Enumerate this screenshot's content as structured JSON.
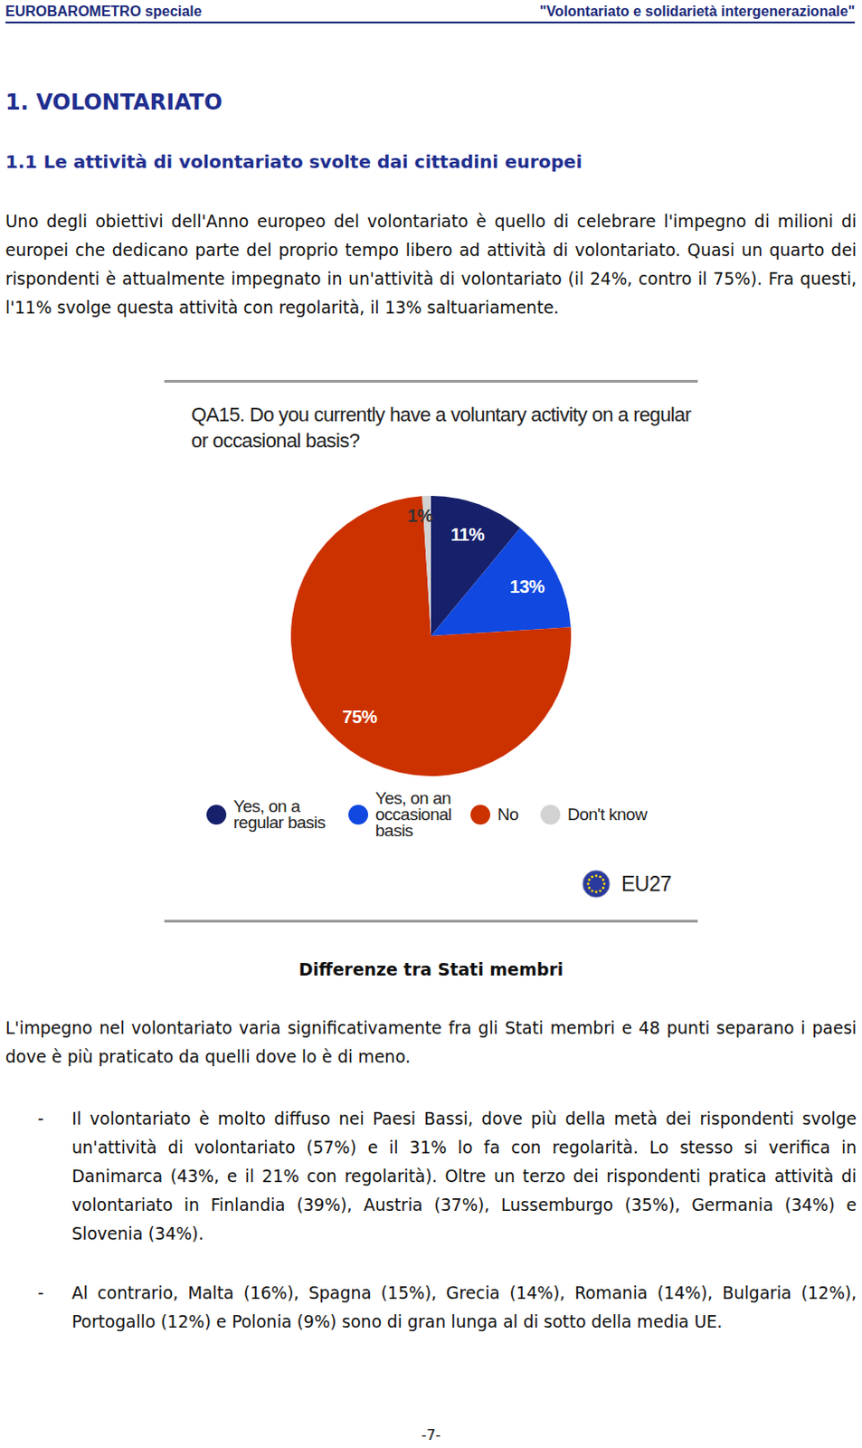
{
  "header": {
    "left": "EUROBAROMETRO speciale",
    "right": "\"Volontariato e solidarietà intergenerazionale\""
  },
  "section_title": "1. VOLONTARIATO",
  "subsection_title": "1.1 Le attività di volontariato svolte dai cittadini europei",
  "paragraph_1": "Uno degli obiettivi dell'Anno europeo del volontariato è quello di celebrare l'impegno di milioni di europei che dedicano parte del proprio tempo libero ad attività di volontariato. Quasi un quarto dei rispondenti è attualmente impegnato in un'attività di volontariato (il 24%, contro il 75%). Fra questi, l'11% svolge questa attività con regolarità, il 13% saltuariamente.",
  "chart_data": {
    "type": "pie",
    "title": "QA15. Do you currently have a voluntary activity on a regular or occasional basis?",
    "categories": [
      "Yes, on a regular basis",
      "Yes, on an occasional basis",
      "No",
      "Don't know"
    ],
    "values": [
      11,
      13,
      75,
      1
    ],
    "value_labels": [
      "11%",
      "13%",
      "75%",
      "1%"
    ],
    "colors": [
      "#16206b",
      "#1148e0",
      "#cc3100",
      "#d2d2d2"
    ],
    "data_labels": true,
    "legend": "bottom",
    "annotations": [
      "EU27"
    ]
  },
  "subheading": "Differenze tra Stati membri",
  "paragraph_2": "L'impegno nel volontariato varia significativamente fra gli Stati membri e 48 punti separano i paesi dove è più praticato da quelli dove lo è di meno.",
  "bullet": "-",
  "bullets": [
    "Il volontariato è molto diffuso nei Paesi Bassi, dove più della metà dei rispondenti svolge un'attività di volontariato (57%) e il 31% lo fa con regolarità. Lo stesso si verifica in Danimarca (43%, e il 21% con regolarità). Oltre un terzo dei rispondenti pratica attività di volontariato in Finlandia (39%), Austria (37%), Lussemburgo (35%), Germania (34%) e Slovenia (34%).",
    "Al contrario, Malta (16%), Spagna (15%), Grecia (14%), Romania (14%), Bulgaria (12%), Portogallo (12%) e Polonia (9%) sono di gran lunga al di sotto della media UE."
  ],
  "page_number": "-7-"
}
